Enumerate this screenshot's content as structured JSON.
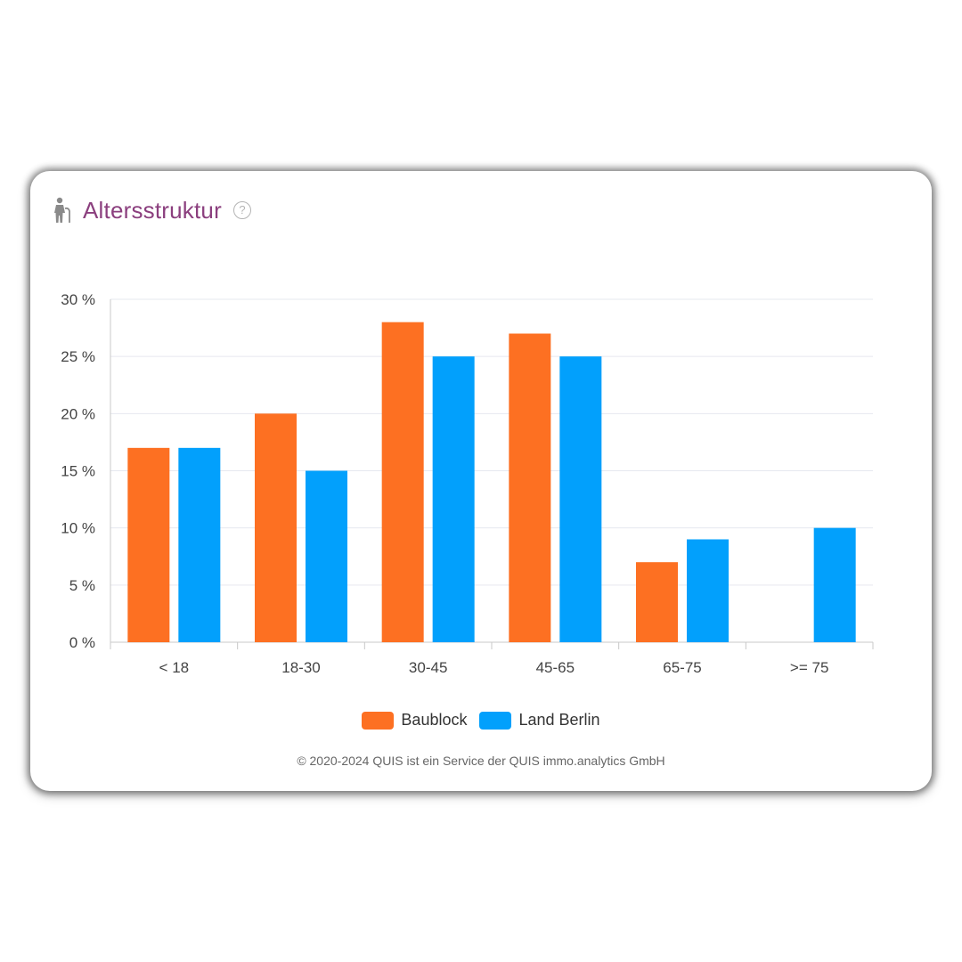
{
  "card": {
    "title": "Altersstruktur",
    "help_glyph": "?",
    "icon": "person-with-cane-icon",
    "title_color": "#8b3f7e",
    "footer": "© 2020-2024 QUIS ist ein Service der QUIS immo.analytics GmbH"
  },
  "chart_data": {
    "type": "bar",
    "title": "",
    "xlabel": "",
    "ylabel": "",
    "categories": [
      "< 18",
      "18-30",
      "30-45",
      "45-65",
      "65-75",
      ">= 75"
    ],
    "series": [
      {
        "name": "Baublock",
        "color": "#fd7022",
        "values": [
          17,
          20,
          28,
          27,
          7,
          0
        ]
      },
      {
        "name": "Land Berlin",
        "color": "#02a0fc",
        "values": [
          17,
          15,
          25,
          25,
          9,
          10
        ]
      }
    ],
    "ylim": [
      0,
      30
    ],
    "yticks": [
      0,
      5,
      10,
      15,
      20,
      25,
      30
    ],
    "ytick_labels": [
      "0 %",
      "5 %",
      "10 %",
      "15 %",
      "20 %",
      "25 %",
      "30 %"
    ],
    "grid": true,
    "legend_position": "bottom-center"
  }
}
